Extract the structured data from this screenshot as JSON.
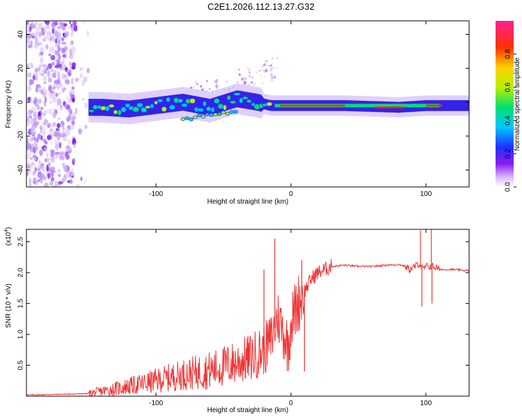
{
  "title": "C2E1.2026.112.13.27.G32",
  "chart_data": [
    {
      "type": "heatmap",
      "title": "C2E1.2026.112.13.27.G32",
      "xlabel": "Height of straight line (km)",
      "ylabel": "Frequency (Hz)",
      "xlim": [
        -196,
        132
      ],
      "ylim": [
        -50,
        48
      ],
      "xticks": [
        -100,
        0,
        100
      ],
      "yticks": [
        -40,
        -20,
        0,
        20,
        40
      ],
      "colorbar": {
        "label": "Normalized spectral amplitude",
        "range": [
          0,
          1
        ],
        "ticks": [
          "0.0",
          "0.2",
          "0.4",
          "0.6",
          "0.8"
        ]
      },
      "ridge": [
        {
          "x": -160,
          "f": -3
        },
        {
          "x": -140,
          "f": -3
        },
        {
          "x": -120,
          "f": -4
        },
        {
          "x": -100,
          "f": -2
        },
        {
          "x": -80,
          "f": 0
        },
        {
          "x": -60,
          "f": -3
        },
        {
          "x": -40,
          "f": 2
        },
        {
          "x": -25,
          "f": 0
        },
        {
          "x": -15,
          "f": -2
        },
        {
          "x": 0,
          "f": -2
        },
        {
          "x": 40,
          "f": -2
        },
        {
          "x": 80,
          "f": -3
        },
        {
          "x": 100,
          "f": -2
        },
        {
          "x": 132,
          "f": -2
        }
      ]
    },
    {
      "type": "line",
      "xlabel": "Height of straight line (km)",
      "ylabel": "SNR (10 * v/v)",
      "yscale_label": "(x10",
      "yscale_exp": "4",
      "xlim": [
        -196,
        132
      ],
      "ylim": [
        0,
        2.7
      ],
      "xticks": [
        -100,
        0,
        100
      ],
      "yticks": [
        "0.5",
        "1.0",
        "1.5",
        "2.0",
        "2.5"
      ],
      "series": [
        {
          "name": "SNR",
          "color": "#ee3333",
          "x": [
            -196,
            -170,
            -150,
            -140,
            -130,
            -120,
            -110,
            -100,
            -90,
            -80,
            -70,
            -60,
            -50,
            -40,
            -30,
            -20,
            -15,
            -12,
            -10,
            -8,
            -5,
            -2,
            0,
            5,
            10,
            15,
            20,
            25,
            30,
            40,
            50,
            60,
            70,
            80,
            85,
            88,
            92,
            95,
            98,
            100,
            103,
            105,
            108,
            110,
            120,
            132
          ],
          "y": [
            0.02,
            0.03,
            0.04,
            0.08,
            0.12,
            0.16,
            0.2,
            0.25,
            0.3,
            0.35,
            0.38,
            0.42,
            0.48,
            0.55,
            0.62,
            0.75,
            0.9,
            1.1,
            1.3,
            1.2,
            1.0,
            0.8,
            1.2,
            1.5,
            1.7,
            1.9,
            2.0,
            2.05,
            2.1,
            2.12,
            2.1,
            2.1,
            2.12,
            2.13,
            2.1,
            2.05,
            2.1,
            2.15,
            2.05,
            2.1,
            2.1,
            2.1,
            2.08,
            2.05,
            2.05,
            2.03
          ]
        }
      ],
      "spikes": [
        {
          "x": -12,
          "y": 2.55
        },
        {
          "x": -20,
          "y": 2.05
        },
        {
          "x": 8,
          "y": 2.2
        },
        {
          "x": 10,
          "y": 0.4
        },
        {
          "x": 96,
          "y": 2.68
        },
        {
          "x": 97,
          "y": 1.45
        },
        {
          "x": 104,
          "y": 2.7
        },
        {
          "x": 104.5,
          "y": 1.5
        }
      ]
    }
  ]
}
